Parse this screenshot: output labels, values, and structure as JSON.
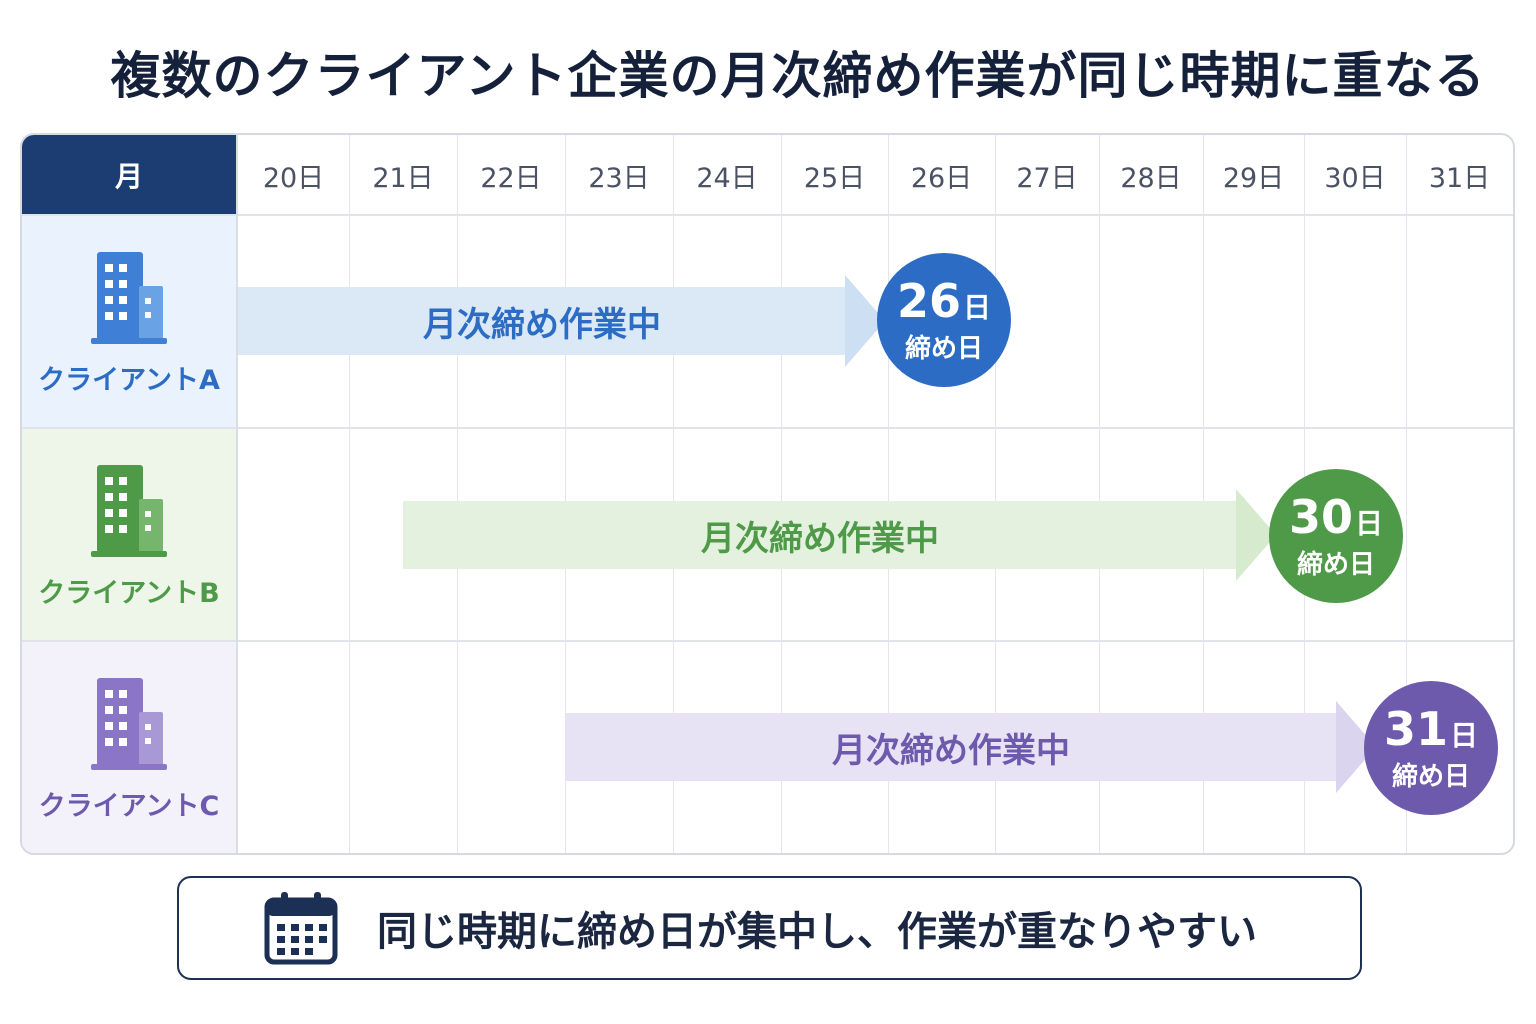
{
  "title": "複数のクライアント企業の月次締め作業が同じ時期に重なる",
  "header": {
    "month_label": "月"
  },
  "days": [
    "20日",
    "21日",
    "22日",
    "23日",
    "24日",
    "25日",
    "26日",
    "27日",
    "28日",
    "29日",
    "30日",
    "31日"
  ],
  "clients": [
    {
      "name": "クライアントA",
      "color": "#2d6cc4",
      "bar_color": "#dbe8f6",
      "bar_text": "月次締め作業中",
      "start_day": "20日",
      "deadline_num": "26",
      "deadline_unit": "日",
      "deadline_label": "締め日",
      "icon": "building-icon"
    },
    {
      "name": "クライアントB",
      "color": "#4f9a48",
      "bar_color": "#e5f1df",
      "bar_text": "月次締め作業中",
      "start_day": "21日",
      "deadline_num": "30",
      "deadline_unit": "日",
      "deadline_label": "締め日",
      "icon": "building-icon"
    },
    {
      "name": "クライアントC",
      "color": "#6e5aad",
      "bar_color": "#e7e3f4",
      "bar_text": "月次締め作業中",
      "start_day": "23日",
      "deadline_num": "31",
      "deadline_unit": "日",
      "deadline_label": "締め日",
      "icon": "building-icon"
    }
  ],
  "note": {
    "icon": "calendar-icon",
    "text": "同じ時期に締め日が集中し、作業が重なりやすい"
  }
}
